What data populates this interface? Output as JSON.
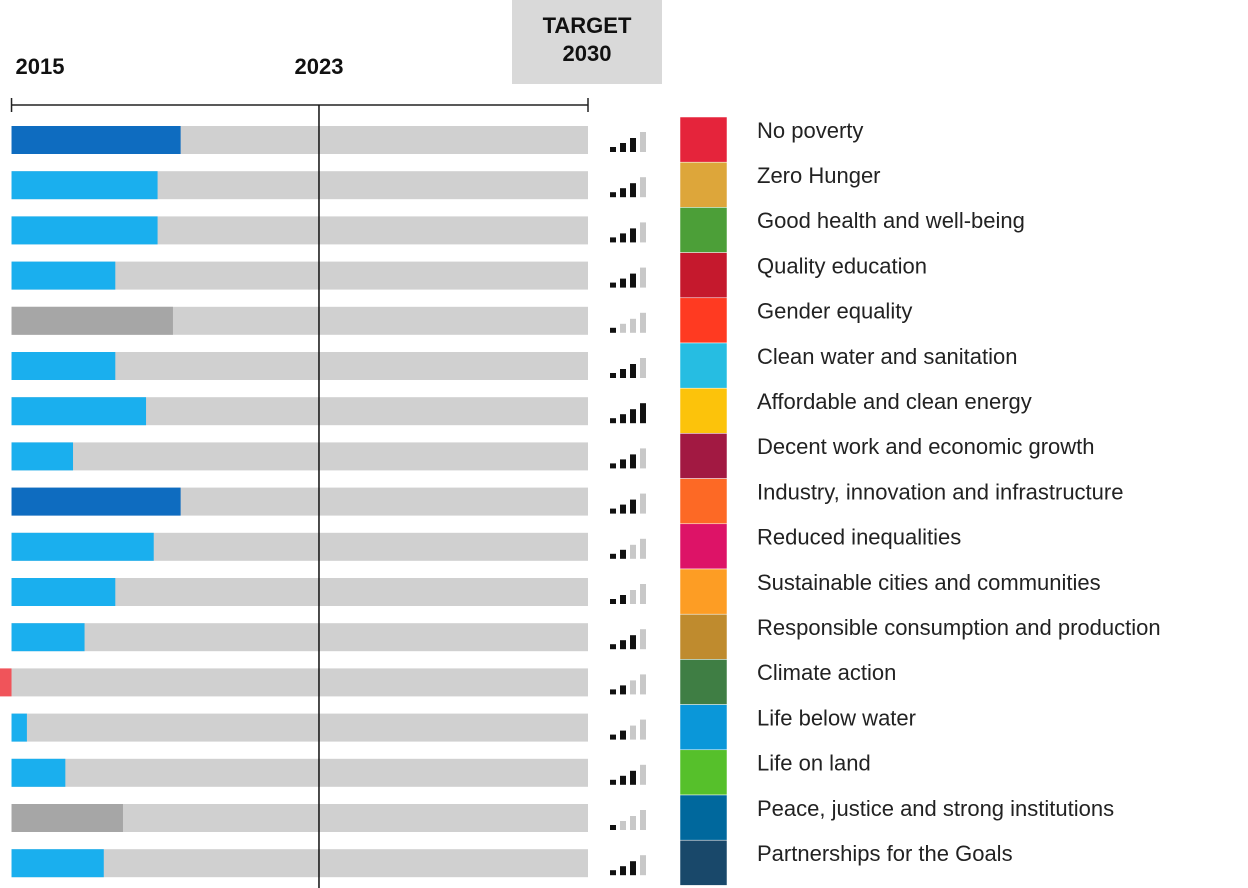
{
  "chart_data": {
    "type": "bar",
    "categories": [
      "No poverty",
      "Zero Hunger",
      "Good health and well-being",
      "Quality education",
      "Gender equality",
      "Clean water and sanitation",
      "Affordable and clean energy",
      "Decent work and economic growth",
      "Industry, innovation and infrastructure",
      "Reduced inequalities",
      "Sustainable cities and communities",
      "Responsible consumption and production",
      "Climate action",
      "Life below water",
      "Life on land",
      "Peace, justice and strong institutions",
      "Partnerships for the Goals"
    ],
    "values": [
      2019.4,
      2018.8,
      2018.8,
      2017.7,
      2019.2,
      2017.7,
      2018.5,
      2016.6,
      2019.4,
      2018.7,
      2017.7,
      2016.9,
      2014.7,
      2015.4,
      2016.4,
      2017.9,
      2017.4
    ],
    "colors": [
      "#0e6cc0",
      "#1aafee",
      "#1aafee",
      "#1aafee",
      "#a6a6a6",
      "#1aafee",
      "#1aafee",
      "#1aafee",
      "#0e6cc0",
      "#1aafee",
      "#1aafee",
      "#1aafee",
      "#f0545a",
      "#1aafee",
      "#1aafee",
      "#a6a6a6",
      "#1aafee"
    ],
    "data_availability": [
      3,
      3,
      3,
      3,
      1,
      3,
      4,
      3,
      3,
      2,
      2,
      3,
      2,
      2,
      3,
      1,
      3
    ],
    "icon_colors": [
      "#e5243b",
      "#dda63a",
      "#4c9f38",
      "#c5192d",
      "#ff3a21",
      "#26bde2",
      "#fcc30b",
      "#a21942",
      "#fd6925",
      "#dd1367",
      "#fd9d24",
      "#bf8b2e",
      "#3f7e44",
      "#0a97d9",
      "#56c02b",
      "#00689d",
      "#19486a"
    ],
    "track_color": "#d0d0d0",
    "xlim": [
      2014.7,
      2030
    ],
    "xticks": [
      2015,
      2023,
      {
        "value": 2030,
        "label": "TARGET 2030"
      }
    ]
  }
}
